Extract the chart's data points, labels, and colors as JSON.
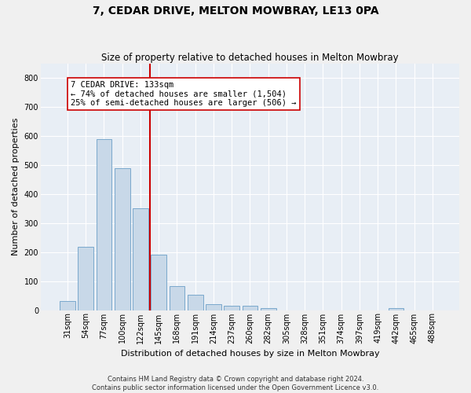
{
  "title": "7, CEDAR DRIVE, MELTON MOWBRAY, LE13 0PA",
  "subtitle": "Size of property relative to detached houses in Melton Mowbray",
  "xlabel": "Distribution of detached houses by size in Melton Mowbray",
  "ylabel": "Number of detached properties",
  "bar_color": "#c8d8e8",
  "bar_edge_color": "#7aa8cc",
  "categories": [
    "31sqm",
    "54sqm",
    "77sqm",
    "100sqm",
    "122sqm",
    "145sqm",
    "168sqm",
    "191sqm",
    "214sqm",
    "237sqm",
    "260sqm",
    "282sqm",
    "305sqm",
    "328sqm",
    "351sqm",
    "374sqm",
    "397sqm",
    "419sqm",
    "442sqm",
    "465sqm",
    "488sqm"
  ],
  "values": [
    30,
    218,
    590,
    488,
    350,
    190,
    83,
    52,
    20,
    15,
    15,
    8,
    0,
    0,
    0,
    0,
    0,
    0,
    8,
    0,
    0
  ],
  "vline_color": "#cc0000",
  "annotation_text": "7 CEDAR DRIVE: 133sqm\n← 74% of detached houses are smaller (1,504)\n25% of semi-detached houses are larger (506) →",
  "annotation_box_color": "#ffffff",
  "annotation_box_edge": "#cc0000",
  "ylim": [
    0,
    850
  ],
  "yticks": [
    0,
    100,
    200,
    300,
    400,
    500,
    600,
    700,
    800
  ],
  "footnote": "Contains HM Land Registry data © Crown copyright and database right 2024.\nContains public sector information licensed under the Open Government Licence v3.0.",
  "background_color": "#e8eef5",
  "grid_color": "#ffffff",
  "title_fontsize": 10,
  "subtitle_fontsize": 8.5,
  "tick_fontsize": 7,
  "ylabel_fontsize": 8,
  "xlabel_fontsize": 8,
  "footnote_fontsize": 6,
  "annotation_fontsize": 7.5
}
